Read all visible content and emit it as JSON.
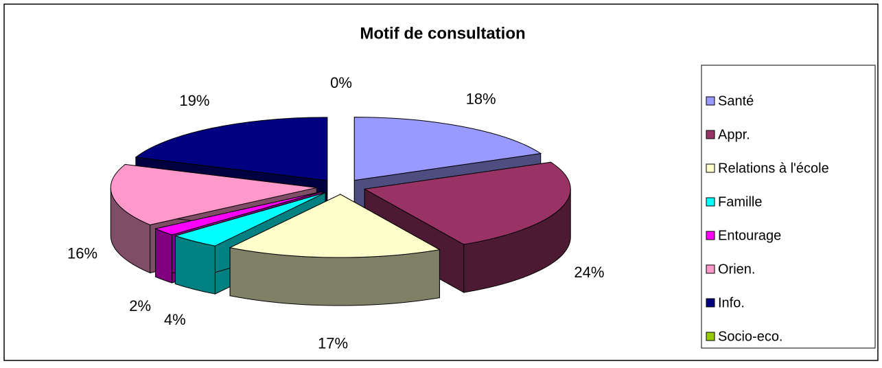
{
  "chart_data": {
    "type": "pie",
    "title": "Motif de consultation",
    "categories": [
      "Santé",
      "Appr.",
      "Relations à l'école",
      "Famille",
      "Entourage",
      "Orien.",
      "Info.",
      "Socio-eco."
    ],
    "values": [
      18,
      24,
      17,
      4,
      2,
      16,
      19,
      0
    ],
    "value_labels": [
      "18%",
      "24%",
      "17%",
      "4%",
      "2%",
      "16%",
      "19%",
      "0%"
    ],
    "colors": [
      "#9999ff",
      "#993366",
      "#ffffcc",
      "#00ffff",
      "#ff00ff",
      "#ff99cc",
      "#000080",
      "#99cc00"
    ],
    "legend": "right"
  }
}
